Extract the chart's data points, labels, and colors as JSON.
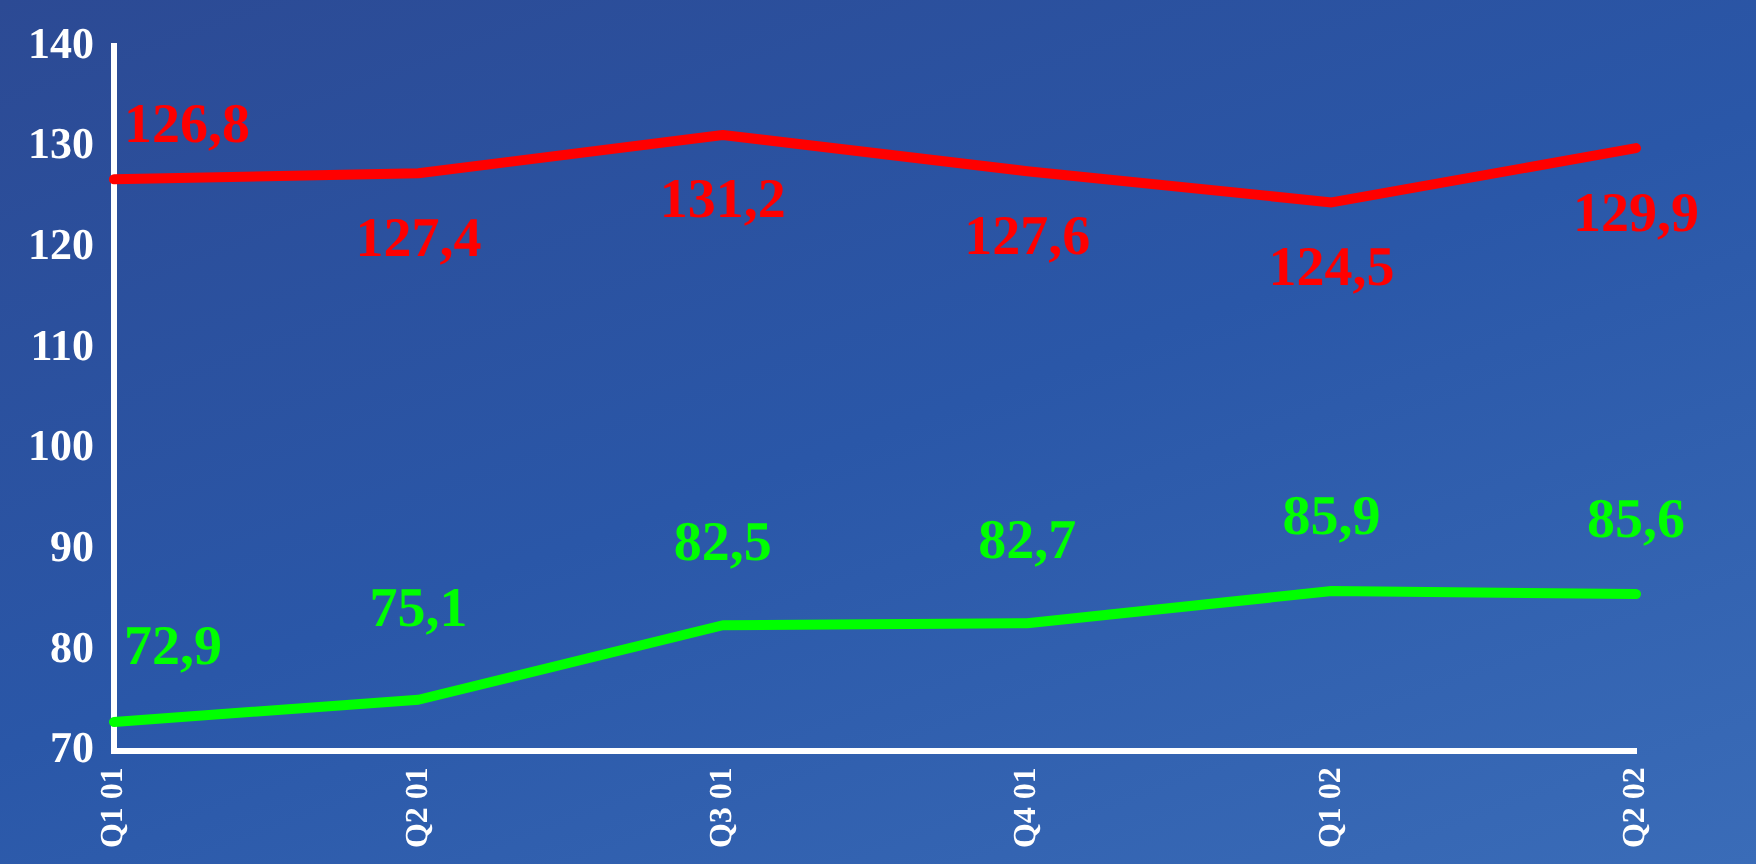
{
  "chart_data": {
    "type": "line",
    "categories": [
      "Q1 01",
      "Q2 01",
      "Q3 01",
      "Q4 01",
      "Q1 02",
      "Q2 02"
    ],
    "series": [
      {
        "color": "#ff0000",
        "values": [
          126.8,
          127.4,
          131.2,
          127.6,
          124.5,
          129.9
        ],
        "value_labels": [
          "126,8",
          "127,4",
          "131,2",
          "127,6",
          "124,5",
          "129,9"
        ]
      },
      {
        "color": "#00ff00",
        "values": [
          72.9,
          75.1,
          82.5,
          82.7,
          85.9,
          85.6
        ],
        "value_labels": [
          "72,9",
          "75,1",
          "82,5",
          "82,7",
          "85,9",
          "85,6"
        ]
      }
    ],
    "ylim": [
      70,
      140
    ],
    "yticks": [
      70,
      80,
      90,
      100,
      110,
      120,
      130,
      140
    ],
    "grid": false,
    "legend": false,
    "marker": "none",
    "line_style": "solid"
  }
}
